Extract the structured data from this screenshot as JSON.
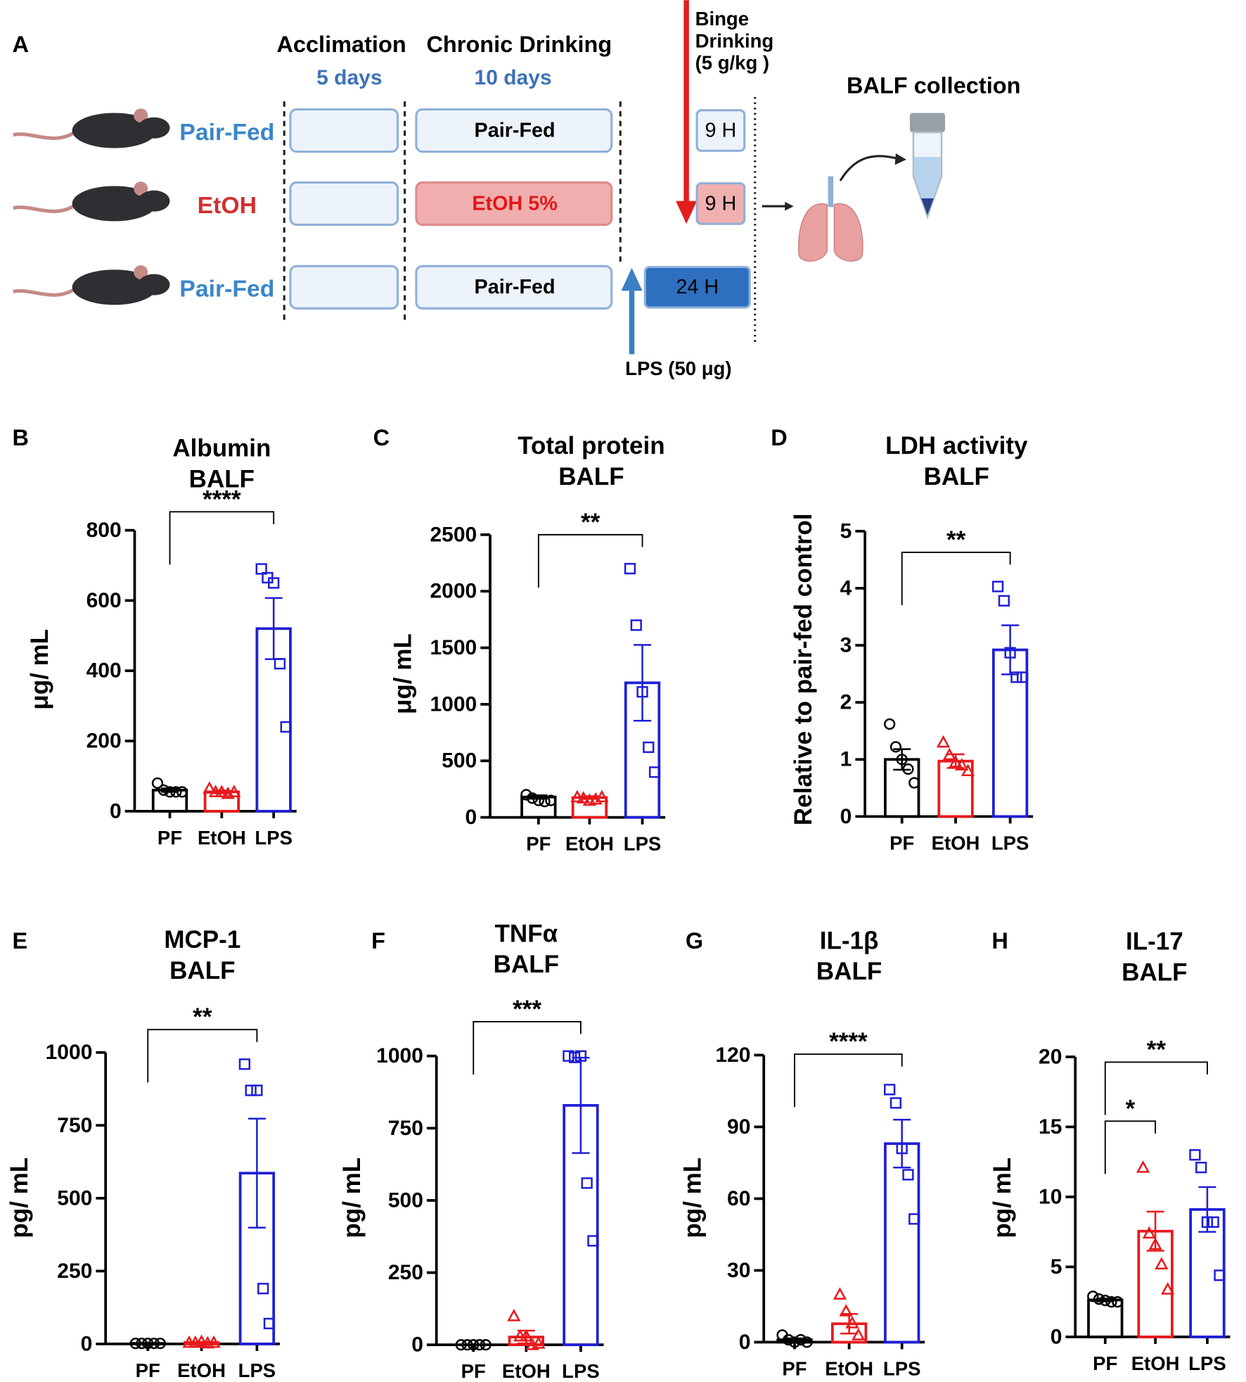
{
  "diagram": {
    "letter": "A",
    "phases": [
      {
        "name": "Acclimation",
        "duration": "5 days"
      },
      {
        "name": "Chronic Drinking",
        "duration": "10 days"
      }
    ],
    "groups": [
      {
        "name": "Pair-Fed",
        "diet": "Pair-Fed",
        "treatment": "9 H"
      },
      {
        "name": "EtOH",
        "diet": "EtOH 5%",
        "treatment": "9 H"
      },
      {
        "name": "Pair-Fed",
        "diet": "Pair-Fed",
        "treatment": "24 H"
      }
    ],
    "binge": [
      "Binge",
      "Drinking",
      "(5 g/kg )"
    ],
    "lps": "LPS (50 μg)",
    "collection": "BALF collection"
  },
  "chart_data": [
    {
      "type": "bar",
      "letter": "B",
      "title": [
        "Albumin",
        "BALF"
      ],
      "y_label": "μg/ mL",
      "categories": [
        "PF",
        "EtOH",
        "LPS"
      ],
      "colors": [
        "#000000",
        "#e8191c",
        "#1f1fd6"
      ],
      "markers": [
        "circle",
        "triangle",
        "square"
      ],
      "values": [
        60,
        55,
        520
      ],
      "errors": [
        5,
        4,
        87
      ],
      "points": [
        [
          80,
          60,
          55,
          55,
          55
        ],
        [
          65,
          55,
          55,
          50,
          55
        ],
        [
          690,
          665,
          650,
          420,
          240
        ]
      ],
      "ylim": [
        0,
        800
      ],
      "yticks": [
        0,
        200,
        400,
        600,
        800
      ],
      "significance": [
        {
          "label": "****",
          "between": [
            "PF",
            "LPS"
          ]
        }
      ]
    },
    {
      "type": "bar",
      "letter": "C",
      "title": [
        "Total protein",
        "BALF"
      ],
      "y_label": "μg/ mL",
      "categories": [
        "PF",
        "EtOH",
        "LPS"
      ],
      "colors": [
        "#000000",
        "#e8191c",
        "#1f1fd6"
      ],
      "markers": [
        "circle",
        "triangle",
        "square"
      ],
      "values": [
        180,
        175,
        1190
      ],
      "errors": [
        15,
        12,
        335
      ],
      "points": [
        [
          200,
          170,
          150,
          140,
          150
        ],
        [
          180,
          170,
          150,
          160,
          180
        ],
        [
          2200,
          1700,
          1110,
          620,
          400
        ]
      ],
      "ylim": [
        0,
        2500
      ],
      "yticks": [
        0,
        500,
        1000,
        1500,
        2000,
        2500
      ],
      "significance": [
        {
          "label": "**",
          "between": [
            "PF",
            "LPS"
          ]
        }
      ]
    },
    {
      "type": "bar",
      "letter": "D",
      "title": [
        "LDH activity",
        "BALF"
      ],
      "y_label": "Relative to pair-fed control",
      "categories": [
        "PF",
        "EtOH",
        "LPS"
      ],
      "colors": [
        "#000000",
        "#e8191c",
        "#1f1fd6"
      ],
      "markers": [
        "circle",
        "triangle",
        "square"
      ],
      "values": [
        1.0,
        0.97,
        2.92
      ],
      "errors": [
        0.18,
        0.12,
        0.43
      ],
      "points": [
        [
          1.62,
          1.22,
          1.0,
          0.83,
          0.59
        ],
        [
          1.3,
          1.08,
          0.95,
          0.9,
          0.8
        ],
        [
          4.03,
          3.78,
          2.87,
          2.44,
          2.44
        ]
      ],
      "ylim": [
        0,
        5
      ],
      "yticks": [
        0,
        1,
        2,
        3,
        4,
        5
      ],
      "significance": [
        {
          "label": "**",
          "between": [
            "PF",
            "LPS"
          ]
        }
      ]
    },
    {
      "type": "bar",
      "letter": "E",
      "title": [
        "MCP-1",
        "BALF"
      ],
      "y_label": "pg/ mL",
      "categories": [
        "PF",
        "EtOH",
        "LPS"
      ],
      "colors": [
        "#000000",
        "#e8191c",
        "#1f1fd6"
      ],
      "markers": [
        "circle",
        "triangle",
        "square"
      ],
      "values": [
        2,
        5,
        586
      ],
      "errors": [
        1,
        2,
        187
      ],
      "points": [
        [
          2,
          2,
          2,
          2,
          2
        ],
        [
          5,
          5,
          8,
          3,
          5
        ],
        [
          960,
          870,
          870,
          190,
          70
        ]
      ],
      "ylim": [
        0,
        1000
      ],
      "yticks": [
        0,
        250,
        500,
        750,
        1000
      ],
      "significance": [
        {
          "label": "**",
          "between": [
            "PF",
            "LPS"
          ]
        }
      ]
    },
    {
      "type": "bar",
      "letter": "F",
      "title": [
        "TNFα",
        "BALF"
      ],
      "y_label": "pg/ mL",
      "categories": [
        "PF",
        "EtOH",
        "LPS"
      ],
      "colors": [
        "#000000",
        "#e8191c",
        "#1f1fd6"
      ],
      "markers": [
        "circle",
        "triangle",
        "square"
      ],
      "values": [
        0,
        27,
        829
      ],
      "errors": [
        0,
        22,
        165
      ],
      "points": [
        [
          0,
          0,
          0,
          0,
          0
        ],
        [
          100,
          30,
          30,
          0,
          5
        ],
        [
          1000,
          995,
          1000,
          560,
          360
        ]
      ],
      "ylim": [
        0,
        1000
      ],
      "yticks": [
        0,
        250,
        500,
        750,
        1000
      ],
      "significance": [
        {
          "label": "***",
          "between": [
            "PF",
            "LPS"
          ]
        }
      ]
    },
    {
      "type": "bar",
      "letter": "G",
      "title": [
        "IL-1β",
        "BALF"
      ],
      "y_label": "pg/ mL",
      "categories": [
        "PF",
        "EtOH",
        "LPS"
      ],
      "colors": [
        "#000000",
        "#e8191c",
        "#1f1fd6"
      ],
      "markers": [
        "circle",
        "triangle",
        "square"
      ],
      "values": [
        1,
        7.7,
        83
      ],
      "errors": [
        0.6,
        4.1,
        10
      ],
      "points": [
        [
          3,
          1,
          0,
          1,
          0
        ],
        [
          20,
          13,
          8,
          3
        ],
        [
          105.6,
          100,
          81,
          70,
          51.5
        ]
      ],
      "ylim": [
        0,
        120
      ],
      "yticks": [
        0,
        30,
        60,
        90,
        120
      ],
      "significance": [
        {
          "label": "****",
          "between": [
            "PF",
            "LPS"
          ]
        }
      ]
    },
    {
      "type": "bar",
      "letter": "H",
      "title": [
        "IL-17",
        "BALF"
      ],
      "y_label": "pg/ mL",
      "categories": [
        "PF",
        "EtOH",
        "LPS"
      ],
      "colors": [
        "#000000",
        "#e8191c",
        "#1f1fd6"
      ],
      "markers": [
        "circle",
        "triangle",
        "square"
      ],
      "values": [
        2.64,
        7.55,
        9.1
      ],
      "errors": [
        0.1,
        1.4,
        1.6
      ],
      "points": [
        [
          2.9,
          2.7,
          2.6,
          2.5,
          2.5
        ],
        [
          12.1,
          7.4,
          6.6,
          5.2,
          3.4
        ],
        [
          13.0,
          12.1,
          8.2,
          8.2,
          4.4
        ]
      ],
      "ylim": [
        0,
        20
      ],
      "yticks": [
        0,
        5,
        10,
        15,
        20
      ],
      "significance": [
        {
          "label": "*",
          "between": [
            "PF",
            "EtOH"
          ]
        },
        {
          "label": "**",
          "between": [
            "PF",
            "LPS"
          ]
        }
      ]
    }
  ]
}
